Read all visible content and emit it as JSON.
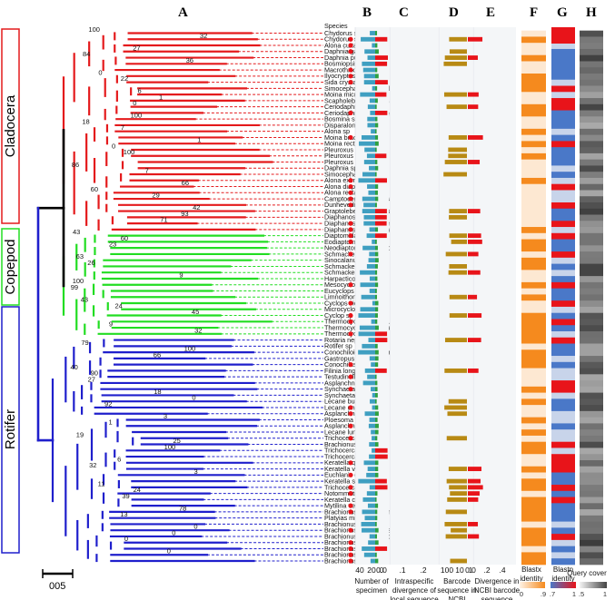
{
  "figure": {
    "panel_letters": [
      "A",
      "B",
      "C",
      "D",
      "E",
      "F",
      "G",
      "H"
    ],
    "clades": [
      {
        "name": "Cladocera",
        "color": "#e41a1c"
      },
      {
        "name": "Copepod",
        "color": "#22dd22"
      },
      {
        "name": "Rotifer",
        "color": "#1f1fcc"
      }
    ],
    "species_header": "Species",
    "species": [
      "Chydorus sp",
      "Chydorus sphaericus",
      "Alona cuttata",
      "Daphnia galeata",
      "Daphnia pulex",
      "Bosmiopsis deitersi",
      "Macrothrix sp",
      "Ilyocryptus sordidus",
      "Sida crystallina",
      "Simocephalus vetuloides",
      "Moina micrura",
      "Scapholeberis mucronata",
      "Ceriodaphnia cornuta",
      "Ceriodaphnia quadrangula",
      "Bosmina sp",
      "Disparalona rostrata",
      "Alona sp",
      "Moina brachiata",
      "Moina rectirostris",
      "Pleuroxus aduncus",
      "Pleuroxus laevis",
      "Pleuroxus trigonellus",
      "Daphnia sp",
      "Simocephalus vetulus",
      "Alona eximia",
      "Alona diaphana",
      "Alona rectangular",
      "Camptocercus rectirostris",
      "Dunhevedia crassa",
      "Graptoleberis testudinaria",
      "Diaphanosoma sp",
      "Diaphanosoma dubium",
      "Diaphanosoma orghidani",
      "Diaptomidae sp",
      "Eodiaptomus sinensis",
      "Neodiaptomus schmackeri",
      "Schmackeria forbesi",
      "Sinocalanus dorrii",
      "Schmackeria inopinus",
      "Schmackeria sp",
      "Harpacticoida sp",
      "Mesocyclops sp",
      "Eucyclops serrulatus",
      "Limnoithona sinensis",
      "Cyclops vicinus",
      "Microcyclops varicans",
      "Cyclop sp",
      "Thermocyclops taihokuensis",
      "Thermocyclops brevifurcatus",
      "Thermocyclops sp",
      "Rotaria neptunia",
      "Rotifer sp",
      "Conochiloides dossuarius",
      "Gastropus stylifer",
      "Conochilus unicornis",
      "Filinia longiseta",
      "Testudinella patina",
      "Asplanchna sp",
      "Synchaeta sp",
      "Synchaeta oblonga",
      "Lecane bulla",
      "Lecane ungulata",
      "Asplanchna girodi",
      "Ploesoma hudsoni",
      "Asplanchna priodonta",
      "Lecane luna",
      "Trichocerca elongata",
      "Brachionus falcatus",
      "Trichocerca bicristata",
      "Trichocerca sp",
      "Keratella quadrata",
      "Keratella valga",
      "Euchlanis dilatata",
      "Keratella sp",
      "Trichocerca stylata",
      "Notommatidae sp",
      "Keratella cochlearis",
      "Mytilina ventralis",
      "Brachionus diversicornis",
      "Platyias militaris",
      "Brachionus forficula",
      "Brachionus calyciflorus",
      "Brachionus quadridentatus",
      "Brachionus leydigii",
      "Brachionus urceus",
      "Brachionus angularis",
      "Brachionus caudatus"
    ],
    "bootstrap_labels": [
      "100",
      "32",
      "27",
      "84",
      "36",
      "0",
      "22",
      "6",
      "1",
      "0",
      "100",
      "18",
      "7",
      "1",
      "0",
      "100",
      "86",
      "7",
      "66",
      "60",
      "29",
      "42",
      "93",
      "71",
      "43",
      "60",
      "23",
      "63",
      "26",
      "9",
      "100",
      "99",
      "43",
      "24",
      "45",
      "9",
      "32",
      "79",
      "100",
      "66",
      "40",
      "90",
      "27",
      "18",
      "0",
      "92",
      "3",
      "1",
      "19",
      "25",
      "100",
      "6",
      "32",
      "3",
      "11",
      "24",
      "39",
      "78",
      "13",
      "0",
      "0",
      "0",
      "0"
    ],
    "columns": [
      {
        "letter": "B",
        "caption": "Number of specimen",
        "ticks": [
          "40",
          "20",
          "0"
        ]
      },
      {
        "letter": "C",
        "caption": "Intraspecific divergence of local sequence",
        "ticks": [
          "0.0",
          ".1",
          ".2"
        ]
      },
      {
        "letter": "D",
        "caption": "Barcode sequence in NCBI",
        "ticks": [
          "100",
          "10",
          "1"
        ]
      },
      {
        "letter": "E",
        "caption": "Divergence in NCBI barcode sequence",
        "ticks": [
          "0.0",
          ".2",
          ".4"
        ]
      },
      {
        "letter": "F",
        "caption": "Blastx identity",
        "ticks": [
          "0",
          ".9"
        ]
      },
      {
        "letter": "G",
        "caption": "Blastn identity",
        "ticks": [
          ".7",
          "1"
        ]
      },
      {
        "letter": "H",
        "caption": "Query cover",
        "ticks": [
          ".5",
          "1"
        ]
      }
    ],
    "scale_bar": "005",
    "colors": {
      "bar_b": "#3f9fc1",
      "bar_c_red": "#e8141a",
      "bar_c_green": "#2ea040",
      "bar_d": "#b88a14",
      "bar_e_red": "#e8141a",
      "dot": "#e8141a",
      "heat_f": "#f58a1e",
      "heat_g_low": "#4a78c8",
      "heat_g_high": "#e8141a",
      "heat_h_dark": "#444444"
    }
  }
}
